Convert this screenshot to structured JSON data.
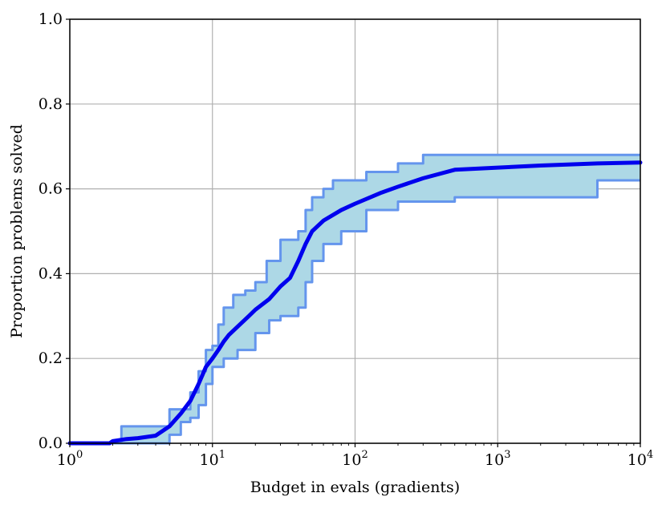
{
  "chart_data": {
    "type": "area",
    "title": "",
    "xlabel": "Budget in evals (gradients)",
    "ylabel": "Proportion problems solved",
    "x_scale": "log",
    "xlim": [
      1,
      10000
    ],
    "ylim": [
      0.0,
      1.0
    ],
    "grid": true,
    "legend": "none",
    "x_ticks": [
      {
        "value": 1,
        "base": "10",
        "exp": "0"
      },
      {
        "value": 10,
        "base": "10",
        "exp": "1"
      },
      {
        "value": 100,
        "base": "10",
        "exp": "2"
      },
      {
        "value": 1000,
        "base": "10",
        "exp": "3"
      },
      {
        "value": 10000,
        "base": "10",
        "exp": "4"
      }
    ],
    "y_ticks": [
      "0.0",
      "0.2",
      "0.4",
      "0.6",
      "0.8",
      "1.0"
    ],
    "colors": {
      "mean_line": "#0000ee",
      "band_fill": "#add8e6",
      "band_lines": "#6495ed",
      "grid": "#b0b0b0"
    },
    "series": [
      {
        "role": "mean",
        "x": [
          1,
          1.9,
          2.0,
          2.5,
          3.0,
          4.0,
          5.0,
          6.0,
          7.0,
          8.0,
          9.0,
          10.0,
          11.0,
          12.0,
          13.0,
          15.0,
          18.0,
          20.0,
          25.0,
          30.0,
          35.0,
          40.0,
          45.0,
          50.0,
          60.0,
          80.0,
          100.0,
          150.0,
          200.0,
          300.0,
          500.0,
          1000.0,
          2000.0,
          5000.0,
          10000.0
        ],
        "y": [
          0.0,
          0.0,
          0.005,
          0.01,
          0.012,
          0.018,
          0.04,
          0.07,
          0.1,
          0.14,
          0.18,
          0.2,
          0.22,
          0.24,
          0.255,
          0.275,
          0.3,
          0.315,
          0.34,
          0.37,
          0.39,
          0.43,
          0.47,
          0.5,
          0.525,
          0.55,
          0.565,
          0.59,
          0.605,
          0.625,
          0.645,
          0.65,
          0.655,
          0.66,
          0.662
        ]
      },
      {
        "role": "band-upper",
        "x": [
          1,
          1.9,
          2.3,
          4.0,
          5.0,
          6.0,
          7.0,
          8.0,
          9.0,
          10.0,
          11.0,
          12.0,
          14.0,
          17.0,
          20.0,
          24.0,
          30.0,
          35.0,
          40.0,
          45.0,
          50.0,
          60.0,
          70.0,
          80.0,
          120.0,
          200.0,
          300.0,
          500.0,
          1000.0,
          10000.0
        ],
        "y": [
          0.0,
          0.0,
          0.04,
          0.04,
          0.08,
          0.08,
          0.12,
          0.17,
          0.22,
          0.23,
          0.28,
          0.32,
          0.35,
          0.36,
          0.38,
          0.43,
          0.48,
          0.48,
          0.5,
          0.55,
          0.58,
          0.6,
          0.62,
          0.62,
          0.64,
          0.66,
          0.68,
          0.68,
          0.68,
          0.68
        ]
      },
      {
        "role": "band-lower",
        "x": [
          1,
          4.0,
          5.0,
          6.0,
          7.0,
          8.0,
          9.0,
          10.0,
          12.0,
          15.0,
          20.0,
          25.0,
          30.0,
          35.0,
          40.0,
          45.0,
          50.0,
          60.0,
          80.0,
          100.0,
          120.0,
          200.0,
          500.0,
          1000.0,
          5000.0,
          10000.0
        ],
        "y": [
          0.0,
          0.0,
          0.02,
          0.05,
          0.06,
          0.09,
          0.14,
          0.18,
          0.2,
          0.22,
          0.26,
          0.29,
          0.3,
          0.3,
          0.32,
          0.38,
          0.43,
          0.47,
          0.5,
          0.5,
          0.55,
          0.57,
          0.58,
          0.58,
          0.62,
          0.62
        ]
      }
    ]
  }
}
